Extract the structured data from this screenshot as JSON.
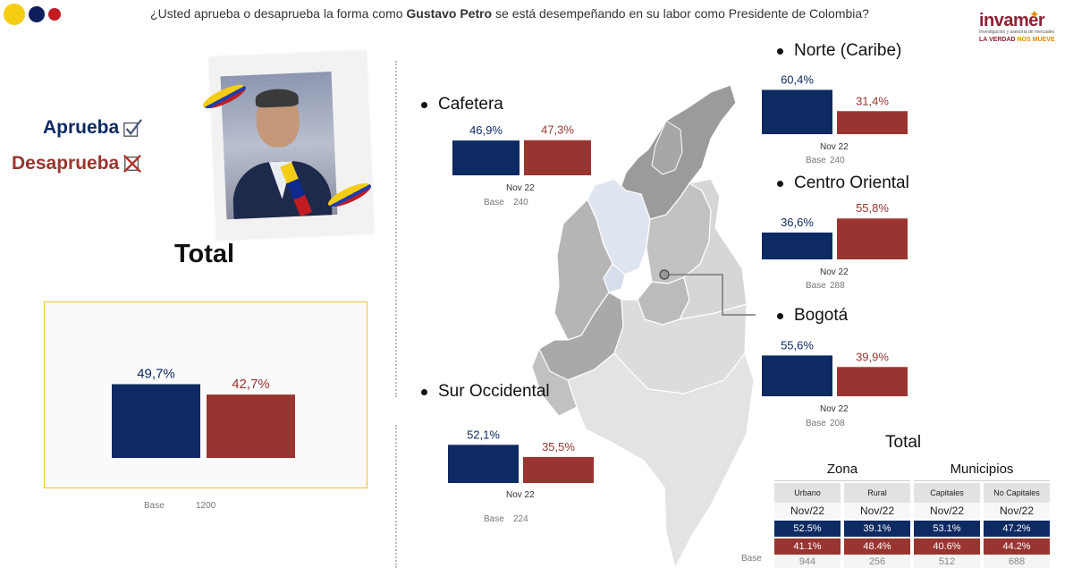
{
  "question": {
    "prefix": "¿Usted aprueba o desaprueba la forma como",
    "name": "Gustavo Petro",
    "suffix": "se está desempeñando en su labor como Presidente de Colombia?"
  },
  "logo": {
    "word": "invamer",
    "sub": "Investigación y asesoría de mercadeo",
    "tag1": "LA VERDAD",
    "tag2": "NOS MUEVE"
  },
  "legend": {
    "approve": "Aprueba",
    "disapprove": "Desaprueba"
  },
  "colors": {
    "approve": "#0e2a63",
    "disapprove": "#993530",
    "accent_yellow": "#f4cd13"
  },
  "total": {
    "title": "Total",
    "base_label": "Base",
    "base_value": "1200"
  },
  "chart_data": [
    {
      "type": "bar",
      "id": "total",
      "series": [
        {
          "name": "Aprueba",
          "value": 49.7,
          "label": "49,7%"
        },
        {
          "name": "Desaprueba",
          "value": 42.7,
          "label": "42,7%"
        }
      ],
      "base": "1200"
    },
    {
      "type": "bar",
      "id": "cafetera",
      "title": "Cafetera",
      "category": "Nov 22",
      "series": [
        {
          "name": "Aprueba",
          "value": 46.9,
          "label": "46,9%"
        },
        {
          "name": "Desaprueba",
          "value": 47.3,
          "label": "47,3%"
        }
      ],
      "base": "240"
    },
    {
      "type": "bar",
      "id": "norte",
      "title": "Norte (Caribe)",
      "category": "Nov 22",
      "series": [
        {
          "name": "Aprueba",
          "value": 60.4,
          "label": "60,4%"
        },
        {
          "name": "Desaprueba",
          "value": 31.4,
          "label": "31,4%"
        }
      ],
      "base": "240"
    },
    {
      "type": "bar",
      "id": "centro",
      "title": "Centro Oriental",
      "category": "Nov 22",
      "series": [
        {
          "name": "Aprueba",
          "value": 36.6,
          "label": "36,6%"
        },
        {
          "name": "Desaprueba",
          "value": 55.8,
          "label": "55,8%"
        }
      ],
      "base": "288"
    },
    {
      "type": "bar",
      "id": "bogota",
      "title": "Bogotá",
      "category": "Nov 22",
      "series": [
        {
          "name": "Aprueba",
          "value": 55.6,
          "label": "55,6%"
        },
        {
          "name": "Desaprueba",
          "value": 39.9,
          "label": "39,9%"
        }
      ],
      "base": "208"
    },
    {
      "type": "bar",
      "id": "sur",
      "title": "Sur Occidental",
      "category": "Nov 22",
      "series": [
        {
          "name": "Aprueba",
          "value": 52.1,
          "label": "52,1%"
        },
        {
          "name": "Desaprueba",
          "value": 35.5,
          "label": "35,5%"
        }
      ],
      "base": "224"
    },
    {
      "type": "table",
      "id": "total_table",
      "title": "Total",
      "groups": [
        {
          "label": "Zona",
          "columns": [
            {
              "header": "Urbano",
              "period": "Nov/22",
              "aprueba": "52.5%",
              "desaprueba": "41.1%",
              "base": "944"
            },
            {
              "header": "Rural",
              "period": "Nov/22",
              "aprueba": "39.1%",
              "desaprueba": "48.4%",
              "base": "256"
            }
          ]
        },
        {
          "label": "Municipios",
          "columns": [
            {
              "header": "Capitales",
              "period": "Nov/22",
              "aprueba": "53.1%",
              "desaprueba": "40.6%",
              "base": "512"
            },
            {
              "header": "No Capitales",
              "period": "Nov/22",
              "aprueba": "47.2%",
              "desaprueba": "44.2%",
              "base": "688"
            }
          ]
        }
      ],
      "base_label": "Base"
    }
  ],
  "regions": {
    "cafetera": {
      "title": "Cafetera",
      "period": "Nov 22",
      "base_label": "Base",
      "base": "240"
    },
    "norte": {
      "title": "Norte (Caribe)",
      "period": "Nov 22",
      "base_label": "Base",
      "base": "240"
    },
    "centro": {
      "title": "Centro Oriental",
      "period": "Nov 22",
      "base_label": "Base",
      "base": "288"
    },
    "bogota": {
      "title": "Bogotá",
      "period": "Nov 22",
      "base_label": "Base",
      "base": "208"
    },
    "sur": {
      "title": "Sur Occidental",
      "period": "Nov 22",
      "base_label": "Base",
      "base": "224"
    }
  },
  "table": {
    "title": "Total",
    "base_label": "Base",
    "g0": "Zona",
    "g1": "Municipios",
    "h0": "Urbano",
    "h1": "Rural",
    "h2": "Capitales",
    "h3": "No Capitales",
    "p0": "Nov/22",
    "p1": "Nov/22",
    "p2": "Nov/22",
    "p3": "Nov/22",
    "a0": "52.5%",
    "a1": "39.1%",
    "a2": "53.1%",
    "a3": "47.2%",
    "d0": "41.1%",
    "d1": "48.4%",
    "d2": "40.6%",
    "d3": "44.2%",
    "b0": "944",
    "b1": "256",
    "b2": "512",
    "b3": "688"
  }
}
